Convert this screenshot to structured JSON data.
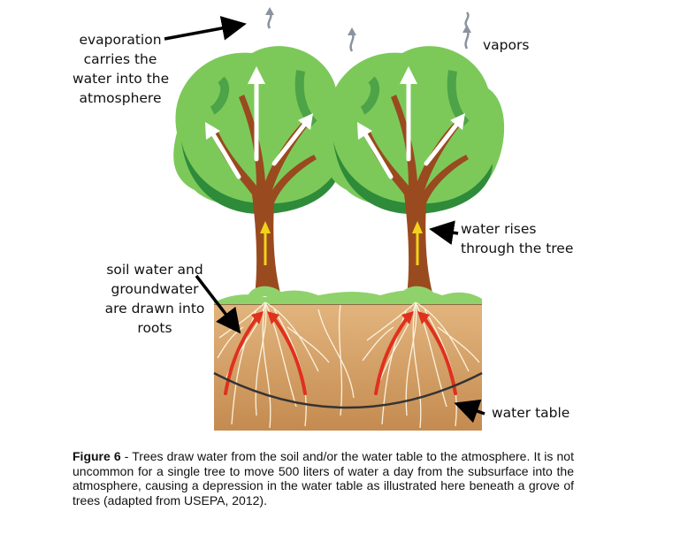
{
  "labels": {
    "evaporation": [
      "evaporation",
      "carries the",
      "water into the",
      "atmosphere"
    ],
    "vapors": "vapors",
    "water_rises": [
      "water rises",
      "through the tree"
    ],
    "soil_water": [
      "soil water and",
      "groundwater",
      "are drawn into",
      "roots"
    ],
    "water_table": "water table"
  },
  "caption": {
    "figure_label": "Figure 6",
    "text": " - Trees draw water from the soil and/or the water table to the atmosphere. It is not uncommon for a single tree to move 500 liters of water a day from the subsurface into the atmosphere, causing a depression in the water table as illustrated here beneath a grove of trees (adapted from USEPA, 2012)."
  },
  "colors": {
    "canopy_light": "#7cc95a",
    "canopy_dark": "#2e8b3a",
    "trunk": "#9a4a1f",
    "soil": "#d9a86c",
    "soil_dark": "#c08a4f",
    "roots": "#fff7e6",
    "water_arrow": "#e0301e",
    "sap_arrow": "#f2d21a",
    "vapor": "#8a93a0",
    "water_table": "#333333"
  }
}
